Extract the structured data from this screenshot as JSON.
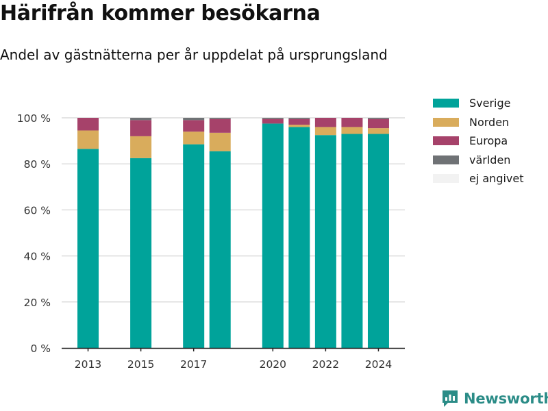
{
  "chart_data": {
    "type": "bar",
    "stacked": true,
    "title": "Härifrån kommer besökarna",
    "subtitle": "Andel av gästnätterna per år uppdelat på ursprungsland",
    "x": [
      2013,
      2015,
      2017,
      2018,
      2020,
      2021,
      2022,
      2023,
      2024
    ],
    "x_ticks": [
      "2013",
      "2015",
      "2017",
      "2020",
      "2022",
      "2024"
    ],
    "xlim": [
      2012,
      2025
    ],
    "ylim": [
      0,
      100
    ],
    "y_ticks": [
      "0 %",
      "20 %",
      "40 %",
      "60 %",
      "80 %",
      "100 %"
    ],
    "grid": true,
    "legend_position": "right",
    "series": [
      {
        "name": "Sverige",
        "color": "#00a39a",
        "values": [
          86.5,
          82.5,
          88.5,
          85.5,
          97.5,
          96.0,
          92.5,
          93.0,
          93.0
        ]
      },
      {
        "name": "Norden",
        "color": "#d9ac5c",
        "values": [
          8.0,
          9.5,
          5.5,
          8.0,
          0.0,
          1.0,
          3.5,
          3.0,
          2.5
        ]
      },
      {
        "name": "Europa",
        "color": "#a6426a",
        "values": [
          5.5,
          7.0,
          5.0,
          6.0,
          2.0,
          2.5,
          4.0,
          4.0,
          4.0
        ]
      },
      {
        "name": "världen",
        "color": "#6f7275",
        "values": [
          0.0,
          1.0,
          1.0,
          0.5,
          0.5,
          0.5,
          0.0,
          0.0,
          0.5
        ]
      },
      {
        "name": "ej angivet",
        "color": "#f2f2f2",
        "values": [
          0.0,
          0.0,
          0.0,
          0.0,
          0.0,
          0.0,
          0.0,
          0.0,
          0.0
        ]
      }
    ]
  },
  "brand": {
    "name": "Newsworthy",
    "icon": "newsworthy-logo-icon"
  }
}
